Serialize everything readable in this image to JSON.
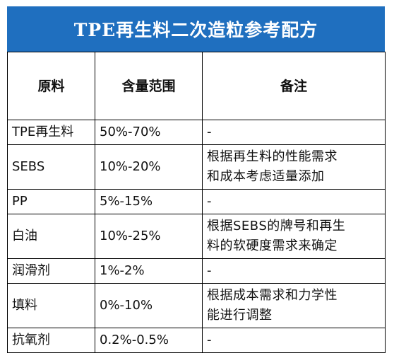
{
  "title": "TPE再生料二次造粒参考配方",
  "table": {
    "headers": [
      "原料",
      "含量范围",
      "备注"
    ],
    "rows": [
      {
        "material": "TPE再生料",
        "range": "50%-70%",
        "note": "-"
      },
      {
        "material": "SEBS",
        "range": "10%-20%",
        "note": "根据再生料的性能需求\n和成本考虑适量添加"
      },
      {
        "material": "PP",
        "range": "5%-15%",
        "note": "-"
      },
      {
        "material": "白油",
        "range": "10%-25%",
        "note": "根据SEBS的牌号和再生\n料的软硬度需求来确定"
      },
      {
        "material": "润滑剂",
        "range": "1%-2%",
        "note": "-"
      },
      {
        "material": "填料",
        "range": "0%-10%",
        "note": "根据成本需求和力学性\n能进行调整"
      },
      {
        "material": "抗氧剂",
        "range": "0.2%-0.5%",
        "note": "-"
      }
    ]
  }
}
